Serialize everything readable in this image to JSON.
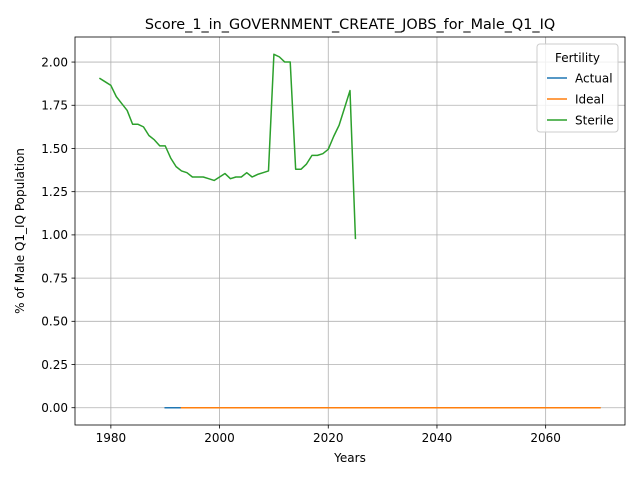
{
  "chart_data": {
    "type": "line",
    "title": "Score_1_in_GOVERNMENT_CREATE_JOBS_for_Male_Q1_IQ",
    "xlabel": "Years",
    "ylabel": "% of Male Q1_IQ Population",
    "xlim": [
      1973.4,
      2074.6
    ],
    "ylim": [
      -0.1,
      2.145
    ],
    "x_ticks": [
      1980,
      2000,
      2020,
      2040,
      2060
    ],
    "x_tick_labels": [
      "1980",
      "2000",
      "2020",
      "2040",
      "2060"
    ],
    "y_ticks": [
      0,
      0.25,
      0.5,
      0.75,
      1.0,
      1.25,
      1.5,
      1.75,
      2.0
    ],
    "y_tick_labels": [
      "0.00",
      "0.25",
      "0.50",
      "0.75",
      "1.00",
      "1.25",
      "1.50",
      "1.75",
      "2.00"
    ],
    "grid": true,
    "legend": {
      "title": "Fertility",
      "position": "top-right"
    },
    "series": [
      {
        "name": "Actual",
        "color": "#1f77b4",
        "x": [
          1990,
          1991,
          1992,
          1993
        ],
        "y": [
          0,
          0,
          0,
          0
        ]
      },
      {
        "name": "Ideal",
        "color": "#ff7f0e",
        "x": [
          1993,
          2000,
          2010,
          2020,
          2030,
          2040,
          2050,
          2060,
          2070
        ],
        "y": [
          0,
          0,
          0,
          0,
          0,
          0,
          0,
          0,
          0
        ]
      },
      {
        "name": "Sterile",
        "color": "#2ca02c",
        "x": [
          1978,
          1979,
          1980,
          1981,
          1982,
          1983,
          1984,
          1985,
          1986,
          1987,
          1988,
          1989,
          1990,
          1991,
          1992,
          1993,
          1994,
          1995,
          1996,
          1997,
          1998,
          1999,
          2000,
          2001,
          2002,
          2003,
          2004,
          2005,
          2006,
          2007,
          2008,
          2009,
          2010,
          2011,
          2012,
          2013,
          2014,
          2015,
          2016,
          2017,
          2018,
          2019,
          2020,
          2021,
          2022,
          2023,
          2024,
          2025
        ],
        "y": [
          1.905,
          1.885,
          1.865,
          1.8,
          1.76,
          1.72,
          1.64,
          1.64,
          1.625,
          1.575,
          1.55,
          1.515,
          1.515,
          1.445,
          1.395,
          1.37,
          1.36,
          1.335,
          1.335,
          1.335,
          1.325,
          1.315,
          1.335,
          1.355,
          1.325,
          1.335,
          1.335,
          1.36,
          1.335,
          1.35,
          1.36,
          1.37,
          2.045,
          2.03,
          2.0,
          2.0,
          1.38,
          1.38,
          1.41,
          1.46,
          1.46,
          1.47,
          1.495,
          1.57,
          1.635,
          1.735,
          1.835,
          0.98
        ]
      }
    ]
  }
}
